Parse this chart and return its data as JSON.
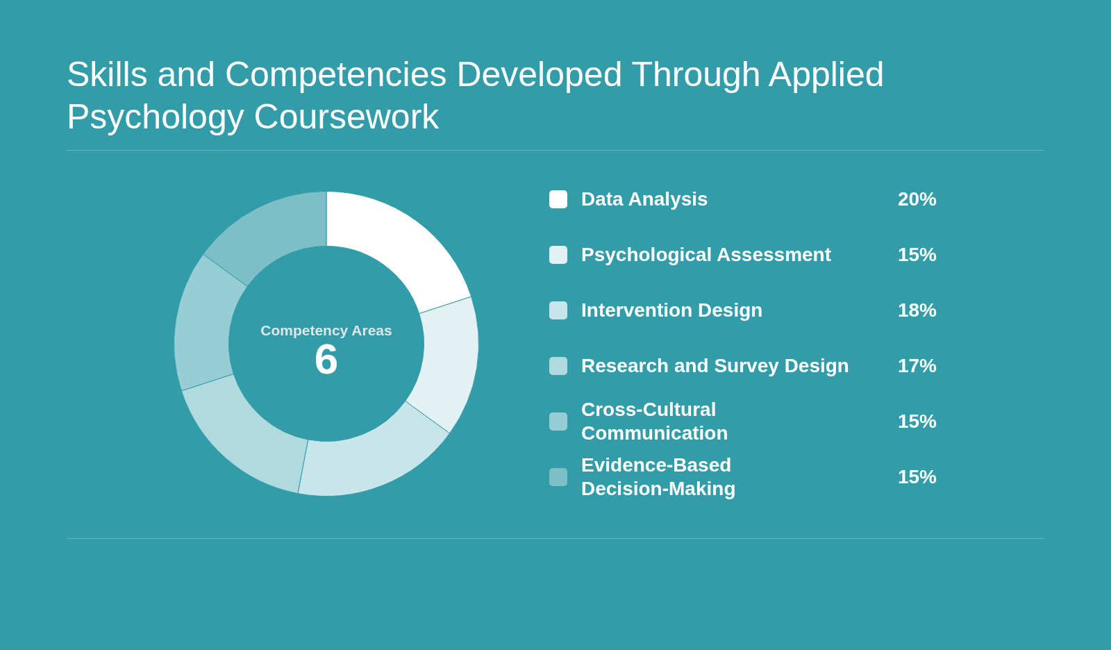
{
  "chart_data": {
    "type": "donut",
    "title": "Skills and Competencies Developed Through Applied Psychology Coursework",
    "categories": [
      "Data Analysis",
      "Psychological Assessment",
      "Intervention Design",
      "Research and Survey Design",
      "Cross-Cultural Communication",
      "Evidence-Based Decision-Making"
    ],
    "values": [
      20,
      15,
      18,
      17,
      15,
      15
    ],
    "colors": [
      "#ffffff",
      "#e2f1f3",
      "#c8e6e9",
      "#b0dadf",
      "#97ced5",
      "#7cbfc7"
    ],
    "value_labels": [
      "20%",
      "15%",
      "18%",
      "17%",
      "15%",
      "15%"
    ],
    "legend": "right",
    "annotations": [
      "Competency Areas",
      "6"
    ]
  }
}
